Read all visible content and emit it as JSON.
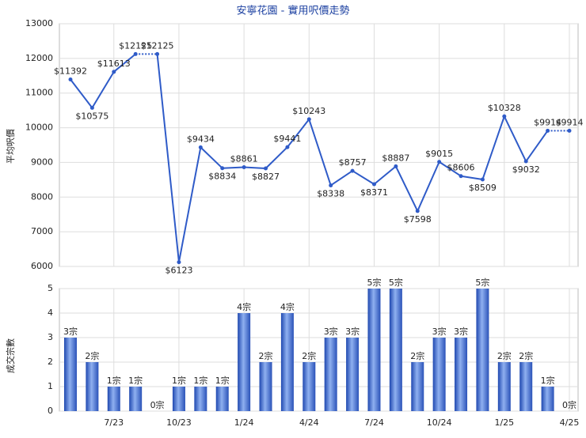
{
  "chart_data": [
    {
      "type": "line",
      "title": "安寧花園 - 實用呎價走勢",
      "ylabel": "平均呎價",
      "color": "#2f5bc8",
      "ylim": [
        6000,
        13000
      ],
      "yticks": [
        6000,
        7000,
        8000,
        9000,
        10000,
        11000,
        12000,
        13000
      ],
      "grid": true,
      "values": [
        11392,
        10575,
        11613,
        12125,
        12125,
        6123,
        9434,
        8834,
        8861,
        8827,
        9441,
        10243,
        8338,
        8757,
        8371,
        8887,
        7598,
        9015,
        8606,
        8509,
        10328,
        9032,
        9914,
        9914
      ],
      "value_labels": [
        "$11392",
        "$10575",
        "$11613",
        "$12125",
        "$12125",
        "$6123",
        "$9434",
        "$8834",
        "$8861",
        "$8827",
        "$9441",
        "$10243",
        "$8338",
        "$8757",
        "$8371",
        "$8887",
        "$7598",
        "$9015",
        "$8606",
        "$8509",
        "$10328",
        "$9032",
        "$9914",
        "$9914"
      ]
    },
    {
      "type": "bar",
      "ylabel": "成交宗數",
      "color": "#3a63c6",
      "ylim": [
        0,
        5
      ],
      "yticks": [
        0,
        1,
        2,
        3,
        4,
        5
      ],
      "grid": true,
      "categories": [
        null,
        null,
        "7/23",
        null,
        null,
        "10/23",
        null,
        null,
        "1/24",
        null,
        null,
        "4/24",
        null,
        null,
        "7/24",
        null,
        null,
        "10/24",
        null,
        null,
        "1/25",
        null,
        null,
        "4/25"
      ],
      "values": [
        3,
        2,
        1,
        1,
        0,
        1,
        1,
        1,
        4,
        2,
        4,
        2,
        3,
        3,
        5,
        5,
        2,
        3,
        3,
        5,
        2,
        2,
        1,
        0
      ],
      "value_labels": [
        "3宗",
        "2宗",
        "1宗",
        "1宗",
        "0宗",
        "1宗",
        "1宗",
        "1宗",
        "4宗",
        "2宗",
        "4宗",
        "2宗",
        "3宗",
        "3宗",
        "5宗",
        "5宗",
        "2宗",
        "3宗",
        "3宗",
        "5宗",
        "2宗",
        "2宗",
        "1宗",
        "0宗"
      ]
    }
  ]
}
